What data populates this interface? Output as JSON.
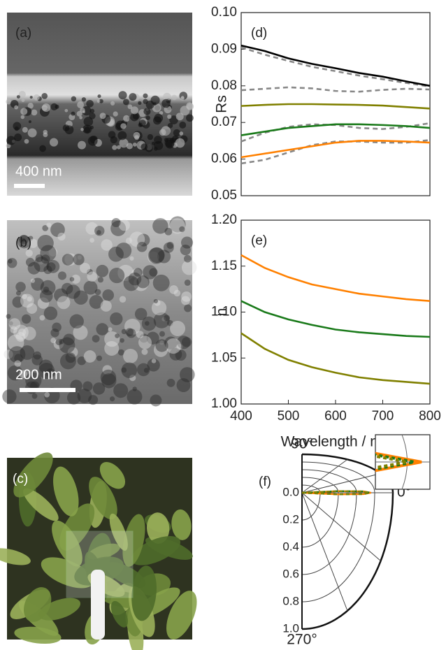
{
  "images": [
    {
      "label": "(a)",
      "scale_bar": "400 nm"
    },
    {
      "label": "(b)",
      "scale_bar": "200 nm"
    },
    {
      "label": "(c)"
    }
  ],
  "chart_data": [
    {
      "type": "line",
      "panel_label": "(d)",
      "ylabel": "Rs",
      "x": [
        400,
        450,
        500,
        550,
        600,
        650,
        700,
        750,
        800
      ],
      "xlim": [
        400,
        800
      ],
      "ylim": [
        0.05,
        0.1
      ],
      "yticks": [
        {
          "value": 0.05,
          "label": "0.05"
        },
        {
          "value": 0.06,
          "label": "0.06"
        },
        {
          "value": 0.07,
          "label": "0.07"
        },
        {
          "value": 0.08,
          "label": "0.08"
        },
        {
          "value": 0.09,
          "label": "0.09"
        },
        {
          "value": 0.1,
          "label": "0.10"
        }
      ],
      "series": [
        {
          "color": "#888888",
          "dashed": true,
          "values": [
            0.0905,
            0.0885,
            0.0868,
            0.0852,
            0.084,
            0.0828,
            0.0818,
            0.0808,
            0.0798
          ]
        },
        {
          "color": "#888888",
          "dashed": true,
          "values": [
            0.0788,
            0.0792,
            0.0796,
            0.0793,
            0.0786,
            0.0784,
            0.0789,
            0.0792,
            0.079
          ]
        },
        {
          "color": "#888888",
          "dashed": true,
          "values": [
            0.0648,
            0.0672,
            0.0688,
            0.0695,
            0.0693,
            0.0685,
            0.0682,
            0.0688,
            0.0698
          ]
        },
        {
          "color": "#888888",
          "dashed": true,
          "values": [
            0.0588,
            0.0598,
            0.0618,
            0.0638,
            0.0648,
            0.0648,
            0.0645,
            0.0645,
            0.0652
          ]
        },
        {
          "color": "#000000",
          "values": [
            0.091,
            0.0895,
            0.0875,
            0.086,
            0.0848,
            0.0835,
            0.0825,
            0.0812,
            0.08
          ]
        },
        {
          "color": "#808000",
          "values": [
            0.0745,
            0.0748,
            0.075,
            0.075,
            0.0749,
            0.0748,
            0.0746,
            0.0742,
            0.0738
          ]
        },
        {
          "color": "#1a7a1a",
          "values": [
            0.0665,
            0.0675,
            0.0685,
            0.069,
            0.0695,
            0.0695,
            0.0693,
            0.069,
            0.0685
          ]
        },
        {
          "color": "#ff8000",
          "values": [
            0.0605,
            0.0615,
            0.0625,
            0.0635,
            0.0645,
            0.065,
            0.065,
            0.0648,
            0.0645
          ]
        }
      ]
    },
    {
      "type": "line",
      "panel_label": "(e)",
      "ylabel": "n",
      "xlabel": "Wavelength / nm",
      "x": [
        400,
        450,
        500,
        550,
        600,
        650,
        700,
        750,
        800
      ],
      "xlim": [
        400,
        800
      ],
      "xticks": [
        400,
        500,
        600,
        700,
        800
      ],
      "ylim": [
        1.0,
        1.2
      ],
      "yticks": [
        {
          "value": 1.0,
          "label": "1.00"
        },
        {
          "value": 1.05,
          "label": "1.05"
        },
        {
          "value": 1.1,
          "label": "1.10"
        },
        {
          "value": 1.15,
          "label": "1.15"
        },
        {
          "value": 1.2,
          "label": "1.20"
        }
      ],
      "series": [
        {
          "color": "#ff8000",
          "values": [
            1.162,
            1.148,
            1.138,
            1.13,
            1.125,
            1.12,
            1.117,
            1.114,
            1.112
          ]
        },
        {
          "color": "#1a7a1a",
          "values": [
            1.112,
            1.1,
            1.092,
            1.086,
            1.081,
            1.078,
            1.076,
            1.074,
            1.073
          ]
        },
        {
          "color": "#808000",
          "values": [
            1.077,
            1.06,
            1.048,
            1.04,
            1.034,
            1.029,
            1.026,
            1.024,
            1.022
          ]
        }
      ]
    },
    {
      "type": "polar",
      "panel_label": "(f)",
      "angle_labels": [
        {
          "value": 90,
          "label": "90°"
        },
        {
          "value": 0,
          "label": "0°"
        },
        {
          "value": 270,
          "label": "270°"
        }
      ],
      "rlim": [
        0,
        1
      ],
      "rticks": [
        {
          "value": 0,
          "label": "0.0"
        },
        {
          "value": 0.2,
          "label": "0.2"
        },
        {
          "value": 0.4,
          "label": "0.4"
        },
        {
          "value": 0.6,
          "label": "0.6"
        },
        {
          "value": 0.8,
          "label": "0.8"
        },
        {
          "value": 1,
          "label": "1.0"
        }
      ],
      "theta": [
        -12,
        -6,
        -3,
        0,
        3,
        6,
        12
      ],
      "series": [
        {
          "color": "#ff8000",
          "values": [
            0,
            0.4,
            0.68,
            0.76,
            0.68,
            0.4,
            0
          ]
        },
        {
          "color": "#1a7a1a",
          "dashed": true,
          "values": [
            0,
            0.39,
            0.67,
            0.75,
            0.67,
            0.39,
            0
          ]
        },
        {
          "color": "#808000",
          "dashed": true,
          "values": [
            0,
            0.38,
            0.66,
            0.74,
            0.66,
            0.38,
            0
          ]
        }
      ]
    }
  ]
}
